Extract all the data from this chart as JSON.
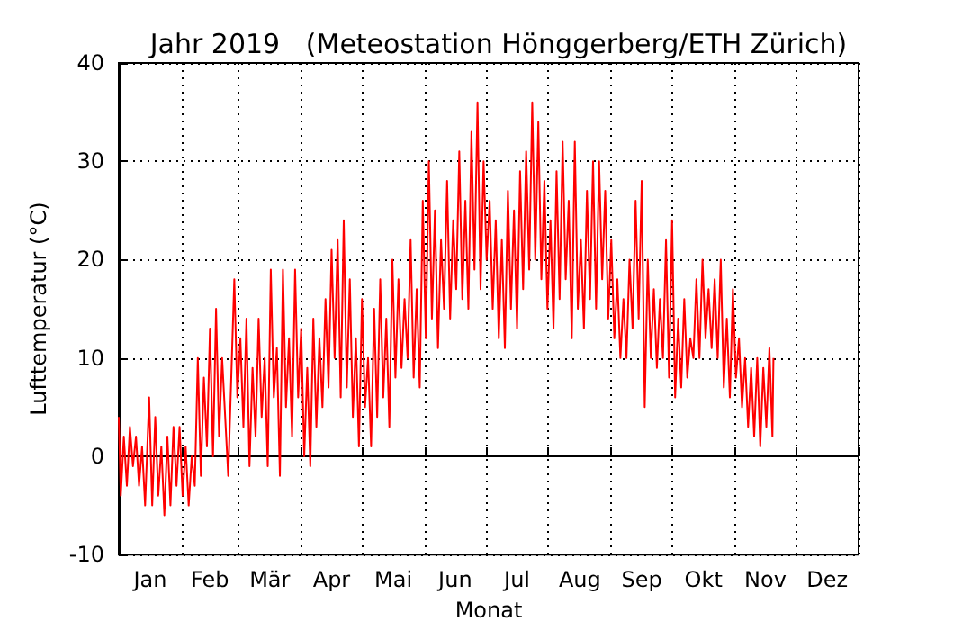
{
  "chart_data": {
    "type": "line",
    "title": "Jahr 2019   (Meteostation Hönggerberg/ETH Zürich)",
    "xlabel": "Monat",
    "ylabel": "Lufttemperatur (°C)",
    "xlim": [
      "2019-01-01",
      "2020-01-01"
    ],
    "xticks": [
      {
        "value": "2019-01-01",
        "label": null
      },
      {
        "value": "2019-01-16T12:00",
        "label": "Jan"
      },
      {
        "value": "2019-02-01",
        "label": null
      },
      {
        "value": "2019-02-15",
        "label": "Feb"
      },
      {
        "value": "2019-03-01",
        "label": null
      },
      {
        "value": "2019-03-16T12:00",
        "label": "Mär"
      },
      {
        "value": "2019-04-01",
        "label": null
      },
      {
        "value": "2019-04-16",
        "label": "Apr"
      },
      {
        "value": "2019-05-01",
        "label": null
      },
      {
        "value": "2019-05-16T12:00",
        "label": "Mai"
      },
      {
        "value": "2019-06-01",
        "label": null
      },
      {
        "value": "2019-06-16",
        "label": "Jun"
      },
      {
        "value": "2019-07-01",
        "label": null
      },
      {
        "value": "2019-07-16T12:00",
        "label": "Jul"
      },
      {
        "value": "2019-08-01",
        "label": null
      },
      {
        "value": "2019-08-16T12:00",
        "label": "Aug"
      },
      {
        "value": "2019-09-01",
        "label": null
      },
      {
        "value": "2019-09-16",
        "label": "Sep"
      },
      {
        "value": "2019-10-01",
        "label": null
      },
      {
        "value": "2019-10-16T12:00",
        "label": "Okt"
      },
      {
        "value": "2019-11-01",
        "label": null
      },
      {
        "value": "2019-11-16",
        "label": "Nov"
      },
      {
        "value": "2019-12-01",
        "label": null
      },
      {
        "value": "2019-12-16T12:00",
        "label": "Dez"
      },
      {
        "value": "2020-01-01",
        "label": null
      }
    ],
    "ylim": [
      -10,
      40
    ],
    "yticks": [
      -10,
      0,
      10,
      20,
      30,
      40
    ],
    "grid": true,
    "marker": "none",
    "line_style": "solid",
    "x": [
      "2019-01-01",
      "2019-01-02",
      "2019-01-03T12:00",
      "2019-01-05",
      "2019-01-06T12:00",
      "2019-01-08",
      "2019-01-09T12:00",
      "2019-01-11",
      "2019-01-12T12:00",
      "2019-01-14",
      "2019-01-16",
      "2019-01-17T12:00",
      "2019-01-19",
      "2019-01-20T12:00",
      "2019-01-22",
      "2019-01-23T12:00",
      "2019-01-25",
      "2019-01-26T12:00",
      "2019-01-28",
      "2019-01-29T12:00",
      "2019-01-31",
      "2019-02-01T12:00",
      "2019-02-03",
      "2019-02-04T12:00",
      "2019-02-06",
      "2019-02-07T12:00",
      "2019-02-09",
      "2019-02-10T12:00",
      "2019-02-12",
      "2019-02-13T12:00",
      "2019-02-15",
      "2019-02-16T12:00",
      "2019-02-18",
      "2019-02-19T12:00",
      "2019-02-21",
      "2019-02-22T12:00",
      "2019-02-24",
      "2019-02-25T12:00",
      "2019-02-27",
      "2019-02-28T12:00",
      "2019-03-02",
      "2019-03-03T12:00",
      "2019-03-05",
      "2019-03-06T12:00",
      "2019-03-08",
      "2019-03-09T12:00",
      "2019-03-11",
      "2019-03-12T12:00",
      "2019-03-14",
      "2019-03-15T12:00",
      "2019-03-17",
      "2019-03-18T12:00",
      "2019-03-20",
      "2019-03-21T12:00",
      "2019-03-23",
      "2019-03-24T12:00",
      "2019-03-26",
      "2019-03-27T12:00",
      "2019-03-29",
      "2019-03-30T12:00",
      "2019-04-01",
      "2019-04-02T12:00",
      "2019-04-04",
      "2019-04-05T12:00",
      "2019-04-07",
      "2019-04-08T12:00",
      "2019-04-10",
      "2019-04-11T12:00",
      "2019-04-13",
      "2019-04-14T12:00",
      "2019-04-16",
      "2019-04-17T12:00",
      "2019-04-19",
      "2019-04-20T12:00",
      "2019-04-22",
      "2019-04-23T12:00",
      "2019-04-25",
      "2019-04-26T12:00",
      "2019-04-28",
      "2019-04-29T12:00",
      "2019-05-01",
      "2019-05-02T12:00",
      "2019-05-04",
      "2019-05-05T12:00",
      "2019-05-07",
      "2019-05-08T12:00",
      "2019-05-10",
      "2019-05-11T12:00",
      "2019-05-13",
      "2019-05-14T12:00",
      "2019-05-16",
      "2019-05-17T12:00",
      "2019-05-19",
      "2019-05-20T12:00",
      "2019-05-22",
      "2019-05-23T12:00",
      "2019-05-25",
      "2019-05-26T12:00",
      "2019-05-28",
      "2019-05-29T12:00",
      "2019-05-31",
      "2019-06-01T12:00",
      "2019-06-03",
      "2019-06-04T12:00",
      "2019-06-06",
      "2019-06-07T12:00",
      "2019-06-09",
      "2019-06-10T12:00",
      "2019-06-12",
      "2019-06-13T12:00",
      "2019-06-15",
      "2019-06-16T12:00",
      "2019-06-18",
      "2019-06-19T12:00",
      "2019-06-21",
      "2019-06-22T12:00",
      "2019-06-24",
      "2019-06-25T12:00",
      "2019-06-27",
      "2019-06-28T12:00",
      "2019-06-30",
      "2019-07-01T12:00",
      "2019-07-03",
      "2019-07-04T12:00",
      "2019-07-06",
      "2019-07-07T12:00",
      "2019-07-09",
      "2019-07-10T12:00",
      "2019-07-12",
      "2019-07-13T12:00",
      "2019-07-15",
      "2019-07-16T12:00",
      "2019-07-18",
      "2019-07-19T12:00",
      "2019-07-21",
      "2019-07-22T12:00",
      "2019-07-24",
      "2019-07-25T12:00",
      "2019-07-27",
      "2019-07-28T12:00",
      "2019-07-30",
      "2019-07-31T12:00",
      "2019-08-02",
      "2019-08-03T12:00",
      "2019-08-05",
      "2019-08-06T12:00",
      "2019-08-08",
      "2019-08-09T12:00",
      "2019-08-11",
      "2019-08-12T12:00",
      "2019-08-14",
      "2019-08-15T12:00",
      "2019-08-17",
      "2019-08-18T12:00",
      "2019-08-20",
      "2019-08-21T12:00",
      "2019-08-23",
      "2019-08-24T12:00",
      "2019-08-26",
      "2019-08-27T12:00",
      "2019-08-29",
      "2019-08-30T12:00",
      "2019-09-01",
      "2019-09-02T12:00",
      "2019-09-04",
      "2019-09-05T12:00",
      "2019-09-07",
      "2019-09-08T12:00",
      "2019-09-10",
      "2019-09-11T12:00",
      "2019-09-13",
      "2019-09-14T12:00",
      "2019-09-16",
      "2019-09-17T12:00",
      "2019-09-19",
      "2019-09-20T12:00",
      "2019-09-22",
      "2019-09-23T12:00",
      "2019-09-25",
      "2019-09-26T12:00",
      "2019-09-28",
      "2019-09-29T12:00",
      "2019-10-01",
      "2019-10-02T12:00",
      "2019-10-04",
      "2019-10-05T12:00",
      "2019-10-07",
      "2019-10-08T12:00",
      "2019-10-10",
      "2019-10-11T12:00",
      "2019-10-13",
      "2019-10-14T12:00",
      "2019-10-16",
      "2019-10-17T12:00",
      "2019-10-19",
      "2019-10-20T12:00",
      "2019-10-22",
      "2019-10-23T12:00",
      "2019-10-25",
      "2019-10-26T12:00",
      "2019-10-28",
      "2019-10-29T12:00",
      "2019-10-31",
      "2019-11-01T12:00",
      "2019-11-03",
      "2019-11-04T12:00",
      "2019-11-06",
      "2019-11-07T12:00",
      "2019-11-09",
      "2019-11-10T12:00",
      "2019-11-12",
      "2019-11-13T12:00",
      "2019-11-15",
      "2019-11-16T12:00",
      "2019-11-18",
      "2019-11-19T12:00",
      "2019-11-20"
    ],
    "series": [
      {
        "color": "#ff0000",
        "values": [
          4,
          -4,
          2,
          -3,
          3,
          -1,
          2,
          -3,
          1,
          -5,
          6,
          -5,
          4,
          -4,
          1,
          -6,
          2,
          -5,
          3,
          -3,
          3,
          -4,
          1,
          -5,
          0,
          -3,
          10,
          -2,
          8,
          1,
          13,
          0,
          15,
          2,
          10,
          4,
          -2,
          8,
          18,
          6,
          12,
          3,
          14,
          -1,
          9,
          2,
          14,
          4,
          10,
          -1,
          19,
          6,
          11,
          -2,
          19,
          5,
          12,
          2,
          19,
          6,
          13,
          0,
          9,
          -1,
          14,
          3,
          12,
          5,
          16,
          7,
          21,
          10,
          22,
          6,
          24,
          7,
          18,
          4,
          12,
          1,
          16,
          5,
          10,
          1,
          15,
          4,
          18,
          6,
          14,
          3,
          20,
          8,
          18,
          9,
          16,
          10,
          22,
          8,
          17,
          7,
          26,
          12,
          30,
          14,
          25,
          11,
          22,
          15,
          28,
          14,
          24,
          17,
          31,
          16,
          26,
          15,
          33,
          19,
          36,
          17,
          30,
          20,
          26,
          15,
          24,
          12,
          22,
          11,
          27,
          15,
          25,
          13,
          29,
          17,
          31,
          19,
          36,
          20,
          34,
          18,
          28,
          15,
          24,
          13,
          29,
          16,
          32,
          18,
          26,
          12,
          32,
          15,
          22,
          13,
          27,
          16,
          30,
          15,
          30,
          18,
          27,
          14,
          22,
          12,
          18,
          10,
          16,
          10,
          20,
          13,
          26,
          14,
          28,
          5,
          20,
          10,
          17,
          9,
          16,
          10,
          22,
          8,
          24,
          6,
          14,
          7,
          16,
          8,
          12,
          10,
          18,
          10,
          20,
          12,
          17,
          11,
          18,
          10,
          20,
          7,
          14,
          6,
          17,
          8,
          12,
          5,
          10,
          3,
          9,
          2,
          10,
          1,
          9,
          3,
          11,
          2,
          10
        ]
      }
    ]
  }
}
